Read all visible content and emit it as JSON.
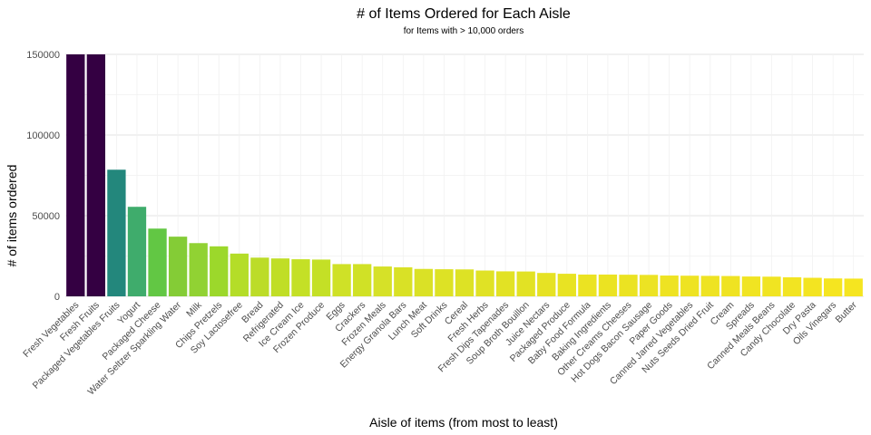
{
  "chart_data": {
    "type": "bar",
    "title": "# of Items Ordered for Each Aisle",
    "subtitle": "for Items with > 10,000 orders",
    "xlabel": "Aisle of items (from most to least)",
    "ylabel": "# of items ordered",
    "ylim": [
      0,
      150000
    ],
    "yticks": [
      0,
      50000,
      100000,
      150000
    ],
    "ytick_labels": [
      "0",
      "50000",
      "100000",
      "150000"
    ],
    "grid": true,
    "colormap": "viridis",
    "categories": [
      "Fresh Vegetables",
      "Fresh Fruits",
      "Packaged Vegetables Fruits",
      "Yogurt",
      "Packaged Cheese",
      "Water Seltzer Sparkling Water",
      "Milk",
      "Chips Pretzels",
      "Soy Lactosefree",
      "Bread",
      "Refrigerated",
      "Ice Cream Ice",
      "Frozen Produce",
      "Eggs",
      "Crackers",
      "Frozen Meals",
      "Energy Granola Bars",
      "Lunch Meat",
      "Soft Drinks",
      "Cereal",
      "Fresh Herbs",
      "Fresh Dips Tapenades",
      "Soup Broth Bouillon",
      "Juice Nectars",
      "Packaged Produce",
      "Baby Food Formula",
      "Baking Ingredients",
      "Other Creams Cheeses",
      "Hot Dogs Bacon Sausage",
      "Paper Goods",
      "Canned Jarred Vegetables",
      "Nuts Seeds Dried Fruit",
      "Cream",
      "Spreads",
      "Canned Meals Beans",
      "Candy Chocolate",
      "Dry Pasta",
      "Oils Vinegars",
      "Butter"
    ],
    "values": [
      150000,
      150000,
      78500,
      55500,
      42000,
      37000,
      33000,
      31000,
      26500,
      24000,
      23500,
      23000,
      22800,
      20000,
      20000,
      18500,
      18000,
      17000,
      16800,
      16700,
      16000,
      15500,
      15400,
      14500,
      14000,
      13500,
      13500,
      13400,
      13300,
      12900,
      12800,
      12700,
      12600,
      12300,
      12200,
      11800,
      11500,
      11100,
      11000
    ],
    "colors": [
      "#340042",
      "#340042",
      "#23877c",
      "#3fac6c",
      "#62c744",
      "#84cc36",
      "#91d233",
      "#9cd82b",
      "#b4dd28",
      "#bcdc28",
      "#c0de26",
      "#c4e026",
      "#c4e026",
      "#cfe127",
      "#d0e126",
      "#d6e128",
      "#d9e126",
      "#dae126",
      "#dde225",
      "#dde225",
      "#e0e225",
      "#e2e224",
      "#e2e224",
      "#e6e224",
      "#e8e323",
      "#ebe322",
      "#ebe322",
      "#ebe322",
      "#ecE323",
      "#eee322",
      "#eee322",
      "#eee322",
      "#efe322",
      "#f0e422",
      "#f0e422",
      "#f2e422",
      "#f3e421",
      "#f5e520",
      "#f5e520"
    ]
  }
}
